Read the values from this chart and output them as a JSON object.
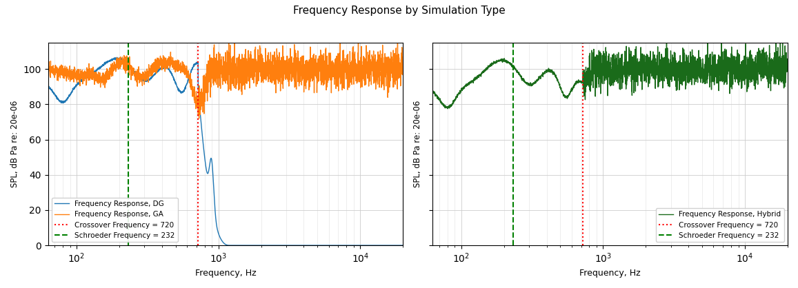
{
  "title": "Frequency Response by Simulation Type",
  "xlabel": "Frequency, Hz",
  "ylabel": "SPL, dB Pa re: 20e-06",
  "crossover_freq": 720,
  "schroeder_freq": 232,
  "freq_min": 63,
  "freq_max": 20000,
  "ylim_left": [
    0,
    115
  ],
  "ylim_right": [
    0,
    115
  ],
  "colors": {
    "DG": "#1f77b4",
    "GA": "#ff7f0e",
    "Hybrid": "#1a6b1a",
    "crossover": "#ff0000",
    "schroeder": "#008000"
  },
  "legend_left": [
    "Frequency Response, DG",
    "Frequency Response, GA",
    "Crossover Frequency = 720",
    "Schroeder Frequency = 232"
  ],
  "legend_right": [
    "Frequency Response, Hybrid",
    "Crossover Frequency = 720",
    "Schroeder Frequency = 232"
  ]
}
